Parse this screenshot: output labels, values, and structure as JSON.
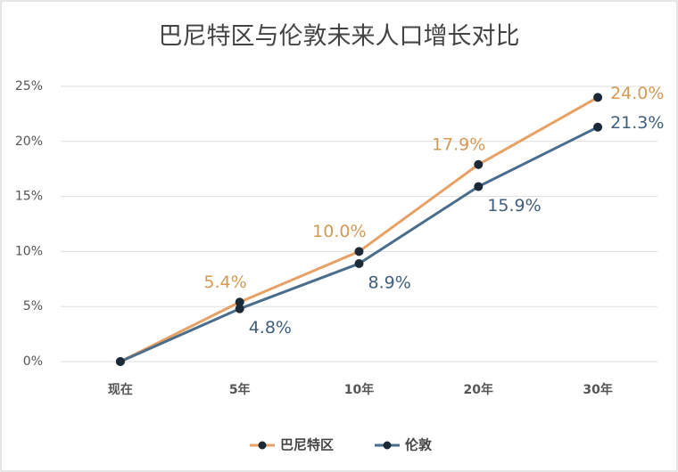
{
  "chart_data": {
    "type": "line",
    "title": "巴尼特区与伦敦未来人口增长对比",
    "categories": [
      "现在",
      "5年",
      "10年",
      "20年",
      "30年"
    ],
    "series": [
      {
        "name": "巴尼特区",
        "color": "#e8a165",
        "values": [
          0,
          5.4,
          10.0,
          17.9,
          24.0
        ],
        "value_labels": [
          null,
          "5.4%",
          "10.0%",
          "17.9%",
          "24.0%"
        ],
        "label_color": "#d29a55"
      },
      {
        "name": "伦敦",
        "color": "#4a6d8c",
        "values": [
          0,
          4.8,
          8.9,
          15.9,
          21.3
        ],
        "value_labels": [
          null,
          "4.8%",
          "8.9%",
          "15.9%",
          "21.3%"
        ],
        "label_color": "#3f5f7c"
      }
    ],
    "ylim": [
      0,
      25
    ],
    "yticks": [
      {
        "value": 0,
        "label": "0%"
      },
      {
        "value": 5,
        "label": "5%"
      },
      {
        "value": 10,
        "label": "10%"
      },
      {
        "value": 15,
        "label": "15%"
      },
      {
        "value": 20,
        "label": "20%"
      },
      {
        "value": 25,
        "label": "25%"
      }
    ],
    "grid": true,
    "legend": "bottom"
  }
}
